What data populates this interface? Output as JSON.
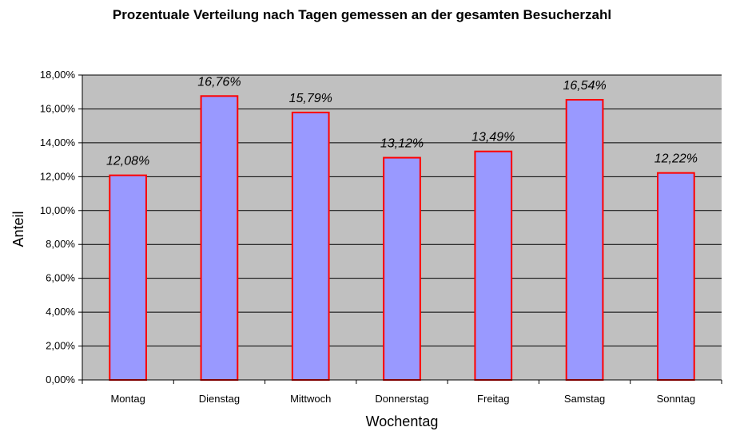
{
  "colors": {
    "plot_background": "#c0c0c0",
    "bar_fill": "#9999ff",
    "bar_stroke": "#ff0000",
    "gridline": "#000000"
  },
  "chart_data": {
    "type": "bar",
    "title": "Prozentuale Verteilung nach Tagen gemessen an der gesamten Besucherzahl",
    "xlabel": "Wochentag",
    "ylabel": "Anteil",
    "categories": [
      "Montag",
      "Dienstag",
      "Mittwoch",
      "Donnerstag",
      "Freitag",
      "Samstag",
      "Sonntag"
    ],
    "values": [
      12.08,
      16.76,
      15.79,
      13.12,
      13.49,
      16.54,
      12.22
    ],
    "data_labels": [
      "12,08%",
      "16,76%",
      "15,79%",
      "13,12%",
      "13,49%",
      "16,54%",
      "12,22%"
    ],
    "ylim": [
      0,
      18
    ],
    "ytick_values": [
      0,
      2,
      4,
      6,
      8,
      10,
      12,
      14,
      16,
      18
    ],
    "ytick_labels": [
      "0,00%",
      "2,00%",
      "4,00%",
      "6,00%",
      "8,00%",
      "10,00%",
      "12,00%",
      "14,00%",
      "16,00%",
      "18,00%"
    ],
    "grid": true,
    "legend": "none"
  }
}
